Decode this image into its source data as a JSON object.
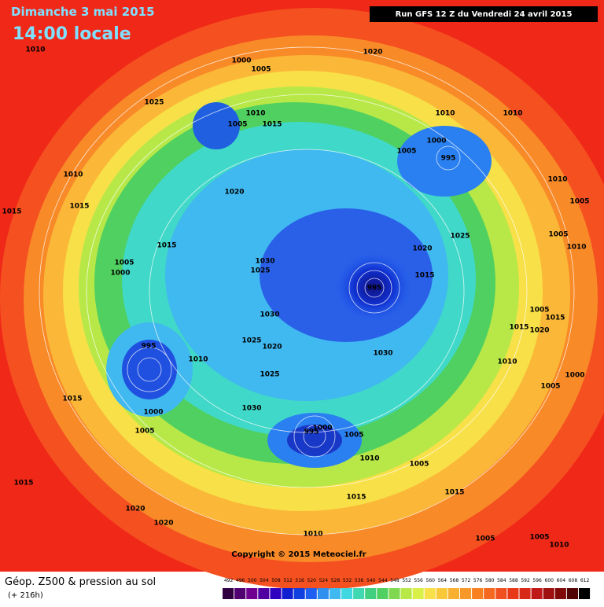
{
  "header": {
    "date": "Dimanche 3 mai 2015",
    "time": "14:00 locale",
    "run": "Run GFS 12 Z du Vendredi 24 avril 2015"
  },
  "map": {
    "pressure_labels": [
      "1010",
      "1020",
      "1000",
      "1005",
      "1025",
      "1010",
      "1005",
      "1015",
      "1010",
      "1010",
      "1005",
      "1000",
      "995",
      "1010",
      "1015",
      "1015",
      "1020",
      "1010",
      "1005",
      "1025",
      "1005",
      "1010",
      "1015",
      "1020",
      "1005",
      "1000",
      "1030",
      "1025",
      "1015",
      "995",
      "1030",
      "1015",
      "1005",
      "1015",
      "1020",
      "1025",
      "1020",
      "995",
      "1010",
      "1030",
      "1025",
      "1010",
      "1000",
      "1005",
      "1015",
      "1030",
      "1000",
      "1005",
      "1000",
      "995",
      "1005",
      "1010",
      "1005",
      "1015",
      "1015",
      "1015",
      "1020",
      "1020",
      "1010",
      "1005",
      "1005",
      "1010"
    ]
  },
  "footer": {
    "copyright": "Copyright © 2015 Meteociel.fr",
    "title": "Géop. Z500 & pression au sol",
    "lead": "(+ 216h)"
  },
  "scale": {
    "levels": [
      492,
      496,
      500,
      504,
      508,
      512,
      516,
      520,
      524,
      528,
      532,
      536,
      540,
      544,
      548,
      552,
      556,
      560,
      564,
      568,
      572,
      576,
      580,
      584,
      588,
      592,
      596,
      600,
      604,
      608,
      612
    ]
  }
}
